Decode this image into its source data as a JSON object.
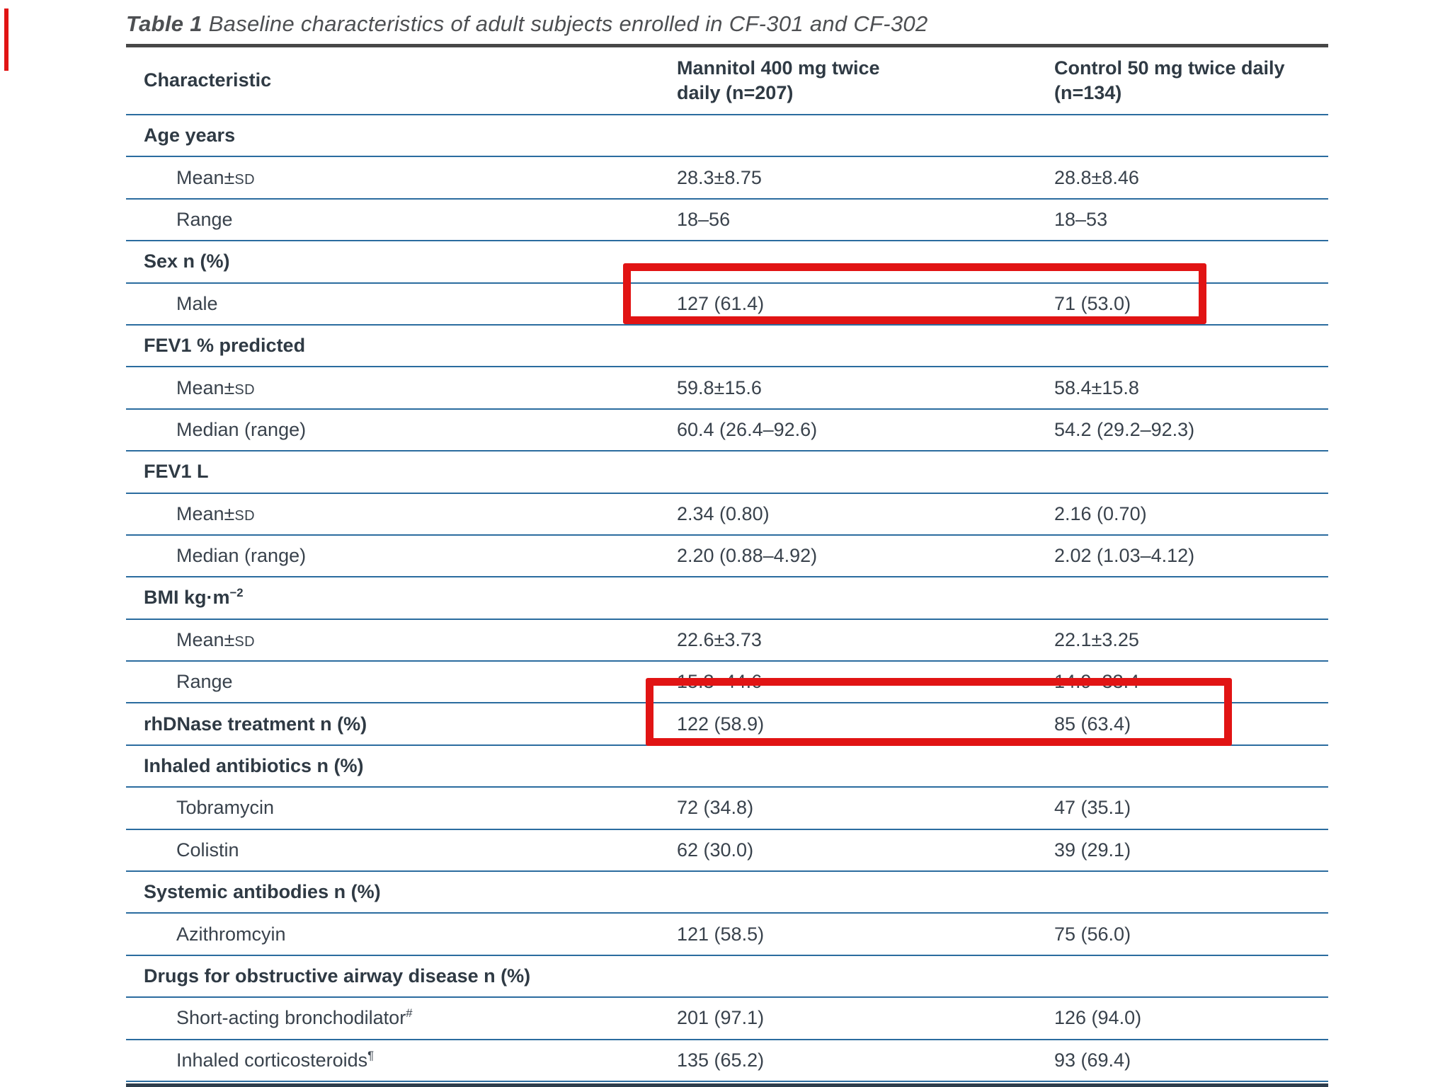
{
  "colors": {
    "accent_rule": "#2b6c9f",
    "heavy_rule": "#474747",
    "bottom_bar": "#2e3d4c",
    "text": "#39424c",
    "highlight": "#e11414"
  },
  "annotation": {
    "highlight_color": "#e11414",
    "highlighted_rows": [
      "Male",
      "rhDNase treatment n (%)"
    ]
  },
  "table": {
    "title_prefix": "Table 1",
    "title_rest": " Baseline characteristics of adult subjects enrolled in CF-301 and CF-302",
    "columns": [
      "Characteristic",
      "Mannitol 400 mg twice daily (n=207)",
      "Control 50 mg twice daily (n=134)"
    ],
    "rows": [
      {
        "type": "section",
        "label": "Age years"
      },
      {
        "type": "item",
        "label": "Mean±",
        "smallcaps": "SD",
        "values": [
          "28.3±8.75",
          "28.8±8.46"
        ]
      },
      {
        "type": "item",
        "label": "Range",
        "values": [
          "18–56",
          "18–53"
        ]
      },
      {
        "type": "section",
        "label": "Sex n (%)"
      },
      {
        "type": "item",
        "label": "Male",
        "values": [
          "127 (61.4)",
          "71 (53.0)"
        ]
      },
      {
        "type": "section",
        "label": "FEV1 % predicted"
      },
      {
        "type": "item",
        "label": "Mean±",
        "smallcaps": "SD",
        "values": [
          "59.8±15.6",
          "58.4±15.8"
        ]
      },
      {
        "type": "item",
        "label": "Median (range)",
        "values": [
          "60.4 (26.4–92.6)",
          "54.2 (29.2–92.3)"
        ]
      },
      {
        "type": "section",
        "label": "FEV1 L"
      },
      {
        "type": "item",
        "label": "Mean±",
        "smallcaps": "SD",
        "values": [
          "2.34 (0.80)",
          "2.16 (0.70)"
        ]
      },
      {
        "type": "item",
        "label": "Median (range)",
        "values": [
          "2.20 (0.88–4.92)",
          "2.02 (1.03–4.12)"
        ]
      },
      {
        "type": "section",
        "label": "BMI kg·m",
        "sup": "−2"
      },
      {
        "type": "item",
        "label": "Mean±",
        "smallcaps": "SD",
        "values": [
          "22.6±3.73",
          "22.1±3.25"
        ]
      },
      {
        "type": "item",
        "label": "Range",
        "values": [
          "15.3–44.6",
          "14.9–33.4"
        ]
      },
      {
        "type": "section-values",
        "label": "rhDNase treatment n (%)",
        "values": [
          "122 (58.9)",
          "85 (63.4)"
        ]
      },
      {
        "type": "section",
        "label": "Inhaled antibiotics n (%)"
      },
      {
        "type": "item",
        "label": "Tobramycin",
        "values": [
          "72 (34.8)",
          "47 (35.1)"
        ]
      },
      {
        "type": "item",
        "label": "Colistin",
        "values": [
          "62 (30.0)",
          "39 (29.1)"
        ]
      },
      {
        "type": "section",
        "label": "Systemic antibodies n (%)"
      },
      {
        "type": "item",
        "label": "Azithromcyin",
        "values": [
          "121 (58.5)",
          "75 (56.0)"
        ]
      },
      {
        "type": "section",
        "label": "Drugs for obstructive airway disease n (%)"
      },
      {
        "type": "item",
        "label": "Short-acting bronchodilator",
        "sup": "#",
        "values": [
          "201 (97.1)",
          "126 (94.0)"
        ]
      },
      {
        "type": "item",
        "label": "Inhaled corticosteroids",
        "sup": "¶",
        "values": [
          "135 (65.2)",
          "93 (69.4)"
        ]
      }
    ]
  }
}
